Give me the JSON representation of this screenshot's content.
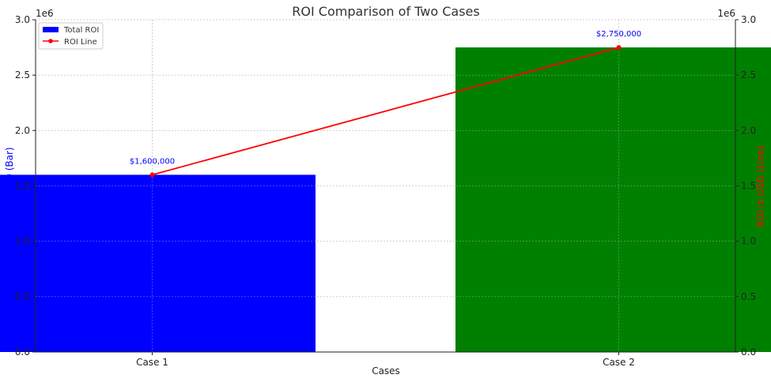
{
  "chart_data": {
    "type": "bar",
    "title": "ROI Comparison of Two Cases",
    "xlabel": "Cases",
    "ylabel_left": "ROI in USD (Bar)",
    "ylabel_right": "ROI in USD (Line)",
    "offset_text_left": "1e6",
    "offset_text_right": "1e6",
    "categories": [
      "Case 1",
      "Case 2"
    ],
    "series": [
      {
        "name": "Total ROI",
        "type": "bar",
        "values": [
          1600000,
          2750000
        ],
        "colors": [
          "#0000ff",
          "#008000"
        ]
      },
      {
        "name": "ROI Line",
        "type": "line",
        "values": [
          1600000,
          2750000
        ],
        "color": "#ff0000"
      }
    ],
    "data_labels": [
      "$1,600,000",
      "$2,750,000"
    ],
    "ylim": [
      0,
      3000000
    ],
    "yticks": [
      "0.0",
      "0.5",
      "1.0",
      "1.5",
      "2.0",
      "2.5",
      "3.0"
    ],
    "ytick_values": [
      0,
      500000,
      1000000,
      1500000,
      2000000,
      2500000,
      3000000
    ],
    "grid": true,
    "legend_position": "top-left",
    "colors": {
      "left_axis_label": "#0000ff",
      "right_axis_label": "#ff0000",
      "data_label": "#0000ff"
    }
  }
}
